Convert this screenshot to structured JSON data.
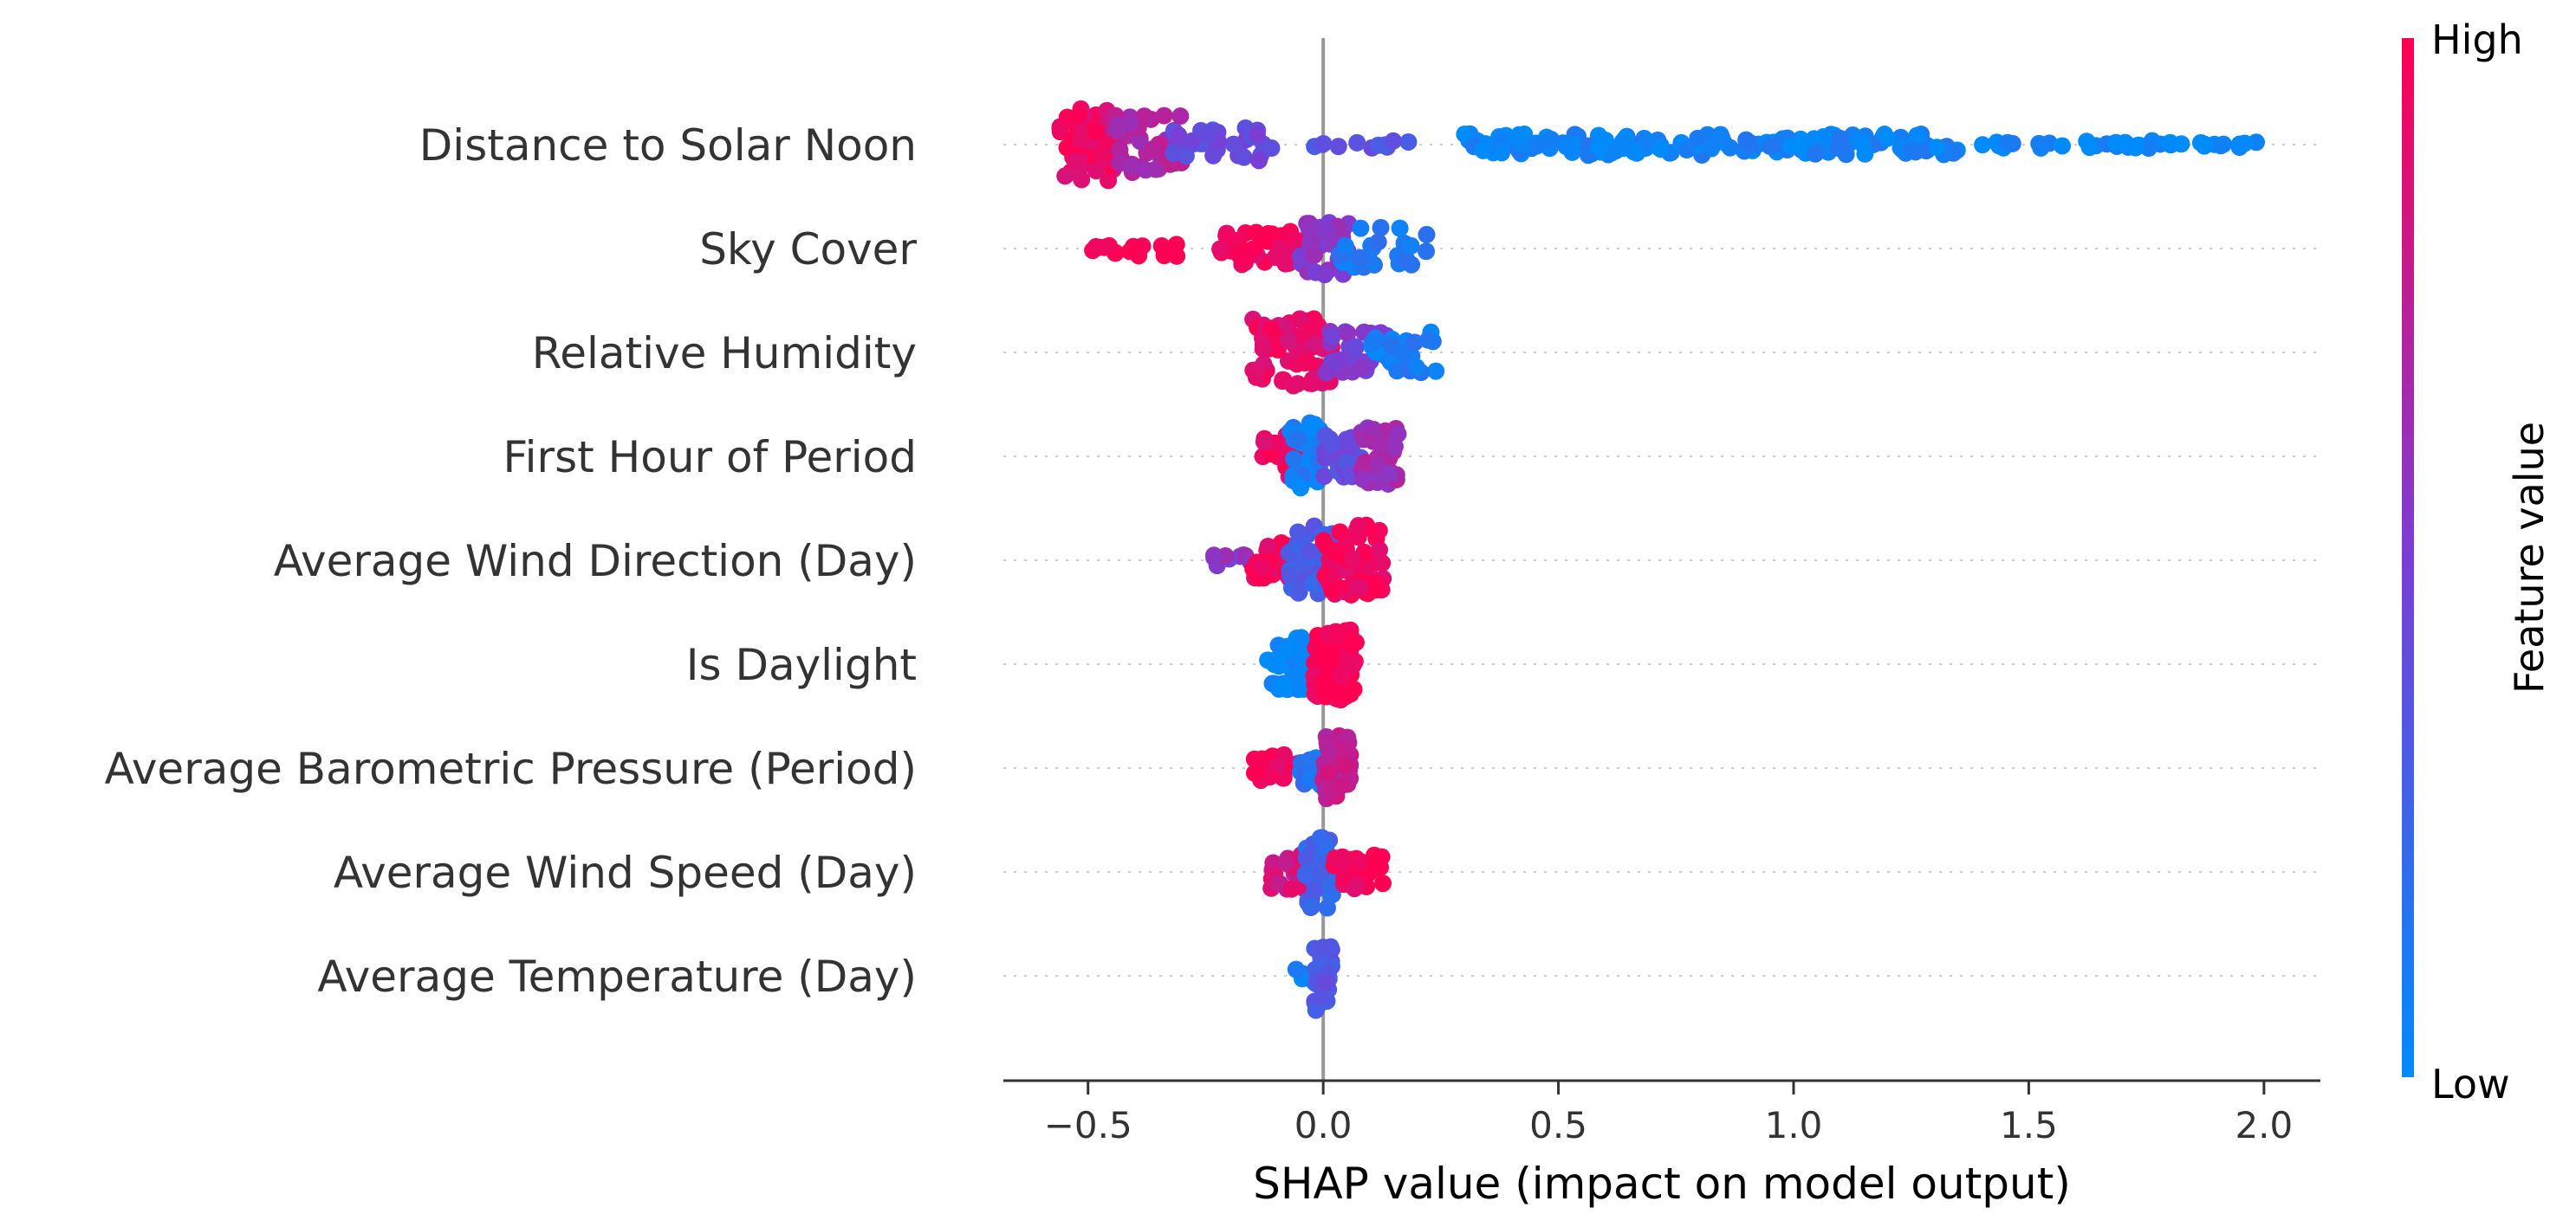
{
  "chart_data": {
    "type": "scatter",
    "subtype": "shap-beeswarm",
    "title": "",
    "xlabel": "SHAP value (impact on model output)",
    "ylabel": "",
    "xlim": [
      -0.68,
      2.12
    ],
    "xticks": [
      -0.5,
      0.0,
      0.5,
      1.0,
      1.5,
      2.0
    ],
    "xtick_labels": [
      "−0.5",
      "0.0",
      "0.5",
      "1.0",
      "1.5",
      "2.0"
    ],
    "zero_line": 0.0,
    "grid": false,
    "colorbar": {
      "label": "Feature value",
      "high_label": "High",
      "low_label": "Low",
      "high_color": "#ff0052",
      "mid_color": "#7a3ed6",
      "low_color": "#008bfb"
    },
    "features": [
      {
        "name": "Distance to Solar Noon",
        "segments": [
          {
            "from": -0.56,
            "to": -0.43,
            "count": 70,
            "value": 0.92,
            "spread": 0.95
          },
          {
            "from": -0.45,
            "to": -0.3,
            "count": 55,
            "value": 0.7,
            "spread": 0.8
          },
          {
            "from": -0.32,
            "to": -0.12,
            "count": 30,
            "value": 0.42,
            "spread": 0.45
          },
          {
            "from": -0.12,
            "to": 0.2,
            "count": 12,
            "value": 0.38,
            "spread": 0.1
          },
          {
            "from": 0.3,
            "to": 1.35,
            "count": 150,
            "value": 0.06,
            "spread": 0.28
          },
          {
            "from": 1.4,
            "to": 2.0,
            "count": 40,
            "value": 0.04,
            "spread": 0.1
          }
        ]
      },
      {
        "name": "Sky Cover",
        "segments": [
          {
            "from": -0.5,
            "to": -0.3,
            "count": 16,
            "value": 1.0,
            "spread": 0.25
          },
          {
            "from": -0.22,
            "to": -0.05,
            "count": 35,
            "value": 0.95,
            "spread": 0.45
          },
          {
            "from": -0.05,
            "to": 0.06,
            "count": 40,
            "value": 0.55,
            "spread": 0.7
          },
          {
            "from": 0.03,
            "to": 0.22,
            "count": 30,
            "value": 0.12,
            "spread": 0.55
          }
        ]
      },
      {
        "name": "Relative Humidity",
        "segments": [
          {
            "from": -0.15,
            "to": 0.02,
            "count": 70,
            "value": 0.92,
            "spread": 0.9
          },
          {
            "from": 0.0,
            "to": 0.14,
            "count": 35,
            "value": 0.5,
            "spread": 0.55
          },
          {
            "from": 0.1,
            "to": 0.25,
            "count": 25,
            "value": 0.1,
            "spread": 0.55
          }
        ]
      },
      {
        "name": "First Hour of Period",
        "segments": [
          {
            "from": -0.13,
            "to": -0.03,
            "count": 35,
            "value": 0.95,
            "spread": 0.6
          },
          {
            "from": -0.07,
            "to": 0.0,
            "count": 40,
            "value": 0.08,
            "spread": 0.9
          },
          {
            "from": 0.0,
            "to": 0.08,
            "count": 30,
            "value": 0.4,
            "spread": 0.55
          },
          {
            "from": 0.08,
            "to": 0.16,
            "count": 40,
            "value": 0.65,
            "spread": 0.75
          }
        ]
      },
      {
        "name": "Average Wind Direction (Day)",
        "segments": [
          {
            "from": -0.24,
            "to": -0.15,
            "count": 10,
            "value": 0.55,
            "spread": 0.15
          },
          {
            "from": -0.15,
            "to": -0.05,
            "count": 30,
            "value": 0.95,
            "spread": 0.5
          },
          {
            "from": -0.08,
            "to": 0.02,
            "count": 50,
            "value": 0.3,
            "spread": 0.9
          },
          {
            "from": 0.0,
            "to": 0.13,
            "count": 60,
            "value": 0.97,
            "spread": 0.95
          }
        ]
      },
      {
        "name": "Is Daylight",
        "segments": [
          {
            "from": -0.12,
            "to": -0.02,
            "count": 50,
            "value": 0.02,
            "spread": 0.7
          },
          {
            "from": -0.02,
            "to": 0.07,
            "count": 90,
            "value": 1.0,
            "spread": 0.95
          }
        ]
      },
      {
        "name": "Average Barometric Pressure (Period)",
        "segments": [
          {
            "from": -0.15,
            "to": -0.04,
            "count": 25,
            "value": 0.97,
            "spread": 0.35
          },
          {
            "from": -0.05,
            "to": 0.0,
            "count": 20,
            "value": 0.15,
            "spread": 0.45
          },
          {
            "from": 0.0,
            "to": 0.06,
            "count": 45,
            "value": 0.75,
            "spread": 0.9
          }
        ]
      },
      {
        "name": "Average Wind Speed (Day)",
        "segments": [
          {
            "from": -0.12,
            "to": -0.02,
            "count": 30,
            "value": 0.85,
            "spread": 0.45
          },
          {
            "from": -0.04,
            "to": 0.02,
            "count": 45,
            "value": 0.25,
            "spread": 0.95
          },
          {
            "from": 0.02,
            "to": 0.13,
            "count": 30,
            "value": 0.97,
            "spread": 0.45
          }
        ]
      },
      {
        "name": "Average Temperature (Day)",
        "segments": [
          {
            "from": -0.06,
            "to": -0.01,
            "count": 6,
            "value": 0.05,
            "spread": 0.2
          },
          {
            "from": -0.02,
            "to": 0.02,
            "count": 40,
            "value": 0.35,
            "spread": 0.95
          }
        ]
      }
    ]
  }
}
